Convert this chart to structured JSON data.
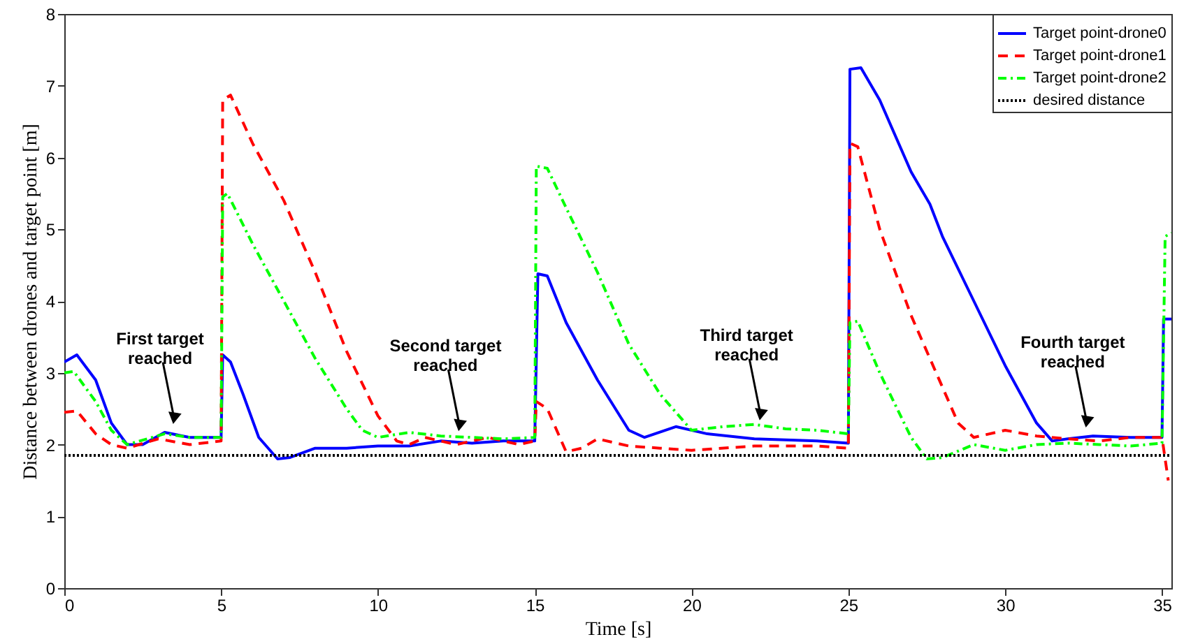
{
  "chart_data": {
    "type": "line",
    "xlabel": "Time [s]",
    "ylabel": "Distance between drones and target point [m]",
    "xlim": [
      0,
      35.3
    ],
    "xticks": [
      0,
      5,
      10,
      15,
      20,
      25,
      30,
      35
    ],
    "ylim": [
      0,
      8
    ],
    "yticks": [
      0,
      1,
      2,
      3,
      4,
      5,
      6,
      7,
      8
    ],
    "grid": false,
    "legend": "top right",
    "series": [
      {
        "name": "Target point-drone0",
        "color": "#0000ff",
        "line_style": "solid",
        "x": [
          0,
          0.4,
          1,
          1.5,
          2,
          2.5,
          3.2,
          4,
          5,
          5.05,
          5.3,
          5.7,
          6.2,
          6.8,
          7.2,
          8,
          9,
          10,
          11,
          12,
          13,
          14,
          15,
          15.1,
          15.4,
          16,
          17,
          18,
          18.5,
          19.5,
          20.5,
          22,
          24,
          25,
          25.05,
          25.4,
          26,
          27,
          27.6,
          28,
          29,
          30,
          31,
          31.5,
          32,
          32.8,
          34,
          35,
          35.05,
          35.3
        ],
        "values": [
          3.15,
          3.25,
          2.9,
          2.3,
          2.0,
          2.0,
          2.17,
          2.1,
          2.1,
          3.25,
          3.15,
          2.7,
          2.1,
          1.8,
          1.82,
          1.95,
          1.95,
          1.98,
          1.98,
          2.05,
          2.02,
          2.05,
          2.05,
          4.38,
          4.35,
          3.7,
          2.9,
          2.2,
          2.1,
          2.25,
          2.15,
          2.08,
          2.05,
          2.02,
          7.23,
          7.25,
          6.8,
          5.8,
          5.35,
          4.9,
          4.0,
          3.1,
          2.3,
          2.05,
          2.08,
          2.12,
          2.1,
          2.1,
          3.75,
          3.75
        ]
      },
      {
        "name": "Target point-drone1",
        "color": "#ff0000",
        "line_style": "dashed",
        "x": [
          0,
          0.4,
          1,
          1.5,
          2,
          3,
          4,
          5,
          5.05,
          5.3,
          6,
          7,
          8,
          9,
          10,
          10.6,
          11,
          11.5,
          12.5,
          13.5,
          14.5,
          15,
          15.05,
          15.4,
          16,
          16.5,
          17,
          18,
          19,
          20,
          22,
          24,
          25,
          25.05,
          25.3,
          26,
          27,
          28,
          28.5,
          29,
          30,
          31,
          32,
          33,
          34,
          35,
          35.2
        ],
        "values": [
          2.45,
          2.47,
          2.15,
          2.0,
          1.95,
          2.08,
          2.0,
          2.05,
          6.8,
          6.87,
          6.2,
          5.4,
          4.4,
          3.3,
          2.4,
          2.05,
          2.0,
          2.1,
          2.0,
          2.1,
          2.0,
          2.05,
          2.6,
          2.5,
          1.9,
          1.95,
          2.08,
          1.98,
          1.95,
          1.92,
          1.98,
          1.98,
          1.95,
          6.2,
          6.15,
          5.0,
          3.8,
          2.8,
          2.3,
          2.1,
          2.2,
          2.12,
          2.08,
          2.05,
          2.1,
          2.1,
          1.5
        ]
      },
      {
        "name": "Target point-drone2",
        "color": "#00ff00",
        "line_style": "dashdot",
        "x": [
          0,
          0.3,
          1,
          1.5,
          2,
          3.2,
          4,
          5,
          5.05,
          5.2,
          6,
          7,
          8,
          9,
          9.5,
          10,
          11,
          12,
          13,
          14,
          15,
          15.05,
          15.4,
          16,
          17,
          18,
          19,
          20,
          21,
          22,
          23,
          24,
          25,
          25.05,
          25.3,
          26,
          27,
          27.5,
          28,
          29,
          30,
          31,
          32,
          33,
          34,
          35,
          35.1,
          35.3
        ],
        "values": [
          3.0,
          3.02,
          2.6,
          2.2,
          2.0,
          2.15,
          2.1,
          2.1,
          5.45,
          5.5,
          4.8,
          4.0,
          3.2,
          2.5,
          2.2,
          2.1,
          2.17,
          2.12,
          2.1,
          2.08,
          2.1,
          5.88,
          5.85,
          5.3,
          4.4,
          3.4,
          2.7,
          2.2,
          2.25,
          2.28,
          2.22,
          2.2,
          2.15,
          3.7,
          3.72,
          3.0,
          2.1,
          1.8,
          1.82,
          2.0,
          1.92,
          2.0,
          2.02,
          2.0,
          1.98,
          2.02,
          4.9,
          4.95
        ]
      }
    ],
    "ref_lines": [
      {
        "axis": "y",
        "value": 1.85,
        "label": "desired distance",
        "color": "#000000",
        "line_style": "dotted"
      }
    ],
    "annotations": [
      {
        "text": "First target\nreached",
        "x": 3.5,
        "y": 2.25
      },
      {
        "text": "Second target\nreached",
        "x": 12.6,
        "y": 2.15
      },
      {
        "text": "Third target\nreached",
        "x": 22.2,
        "y": 2.3
      },
      {
        "text": "Fourth target\nreached",
        "x": 32.6,
        "y": 2.2
      }
    ]
  }
}
